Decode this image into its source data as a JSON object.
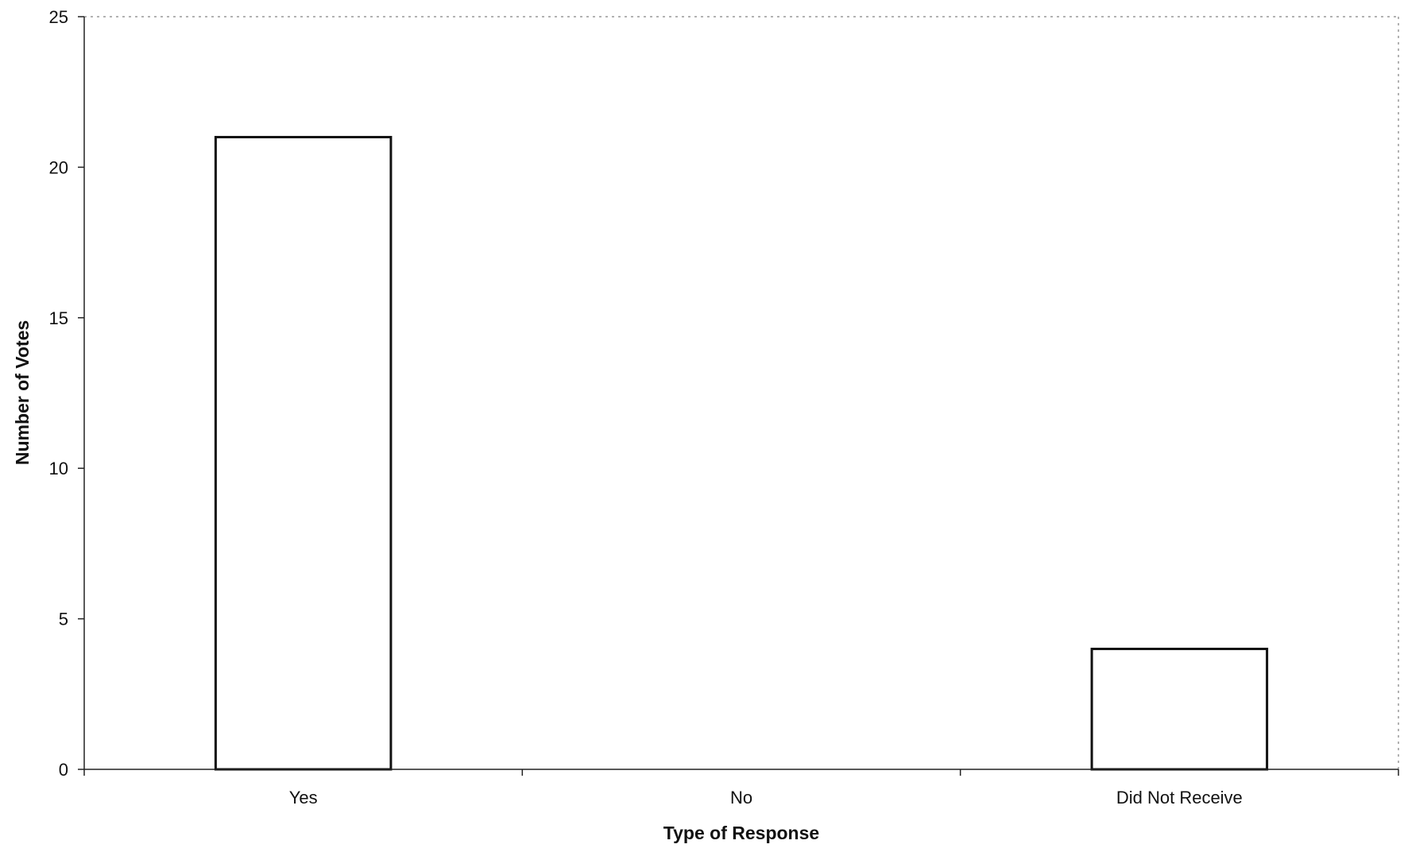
{
  "chart_data": {
    "type": "bar",
    "categories": [
      "Yes",
      "No",
      "Did Not Receive"
    ],
    "values": [
      21,
      0,
      4
    ],
    "xlabel": "Type of Response",
    "ylabel": "Number of Votes",
    "ylim": [
      0,
      25
    ],
    "yticks": [
      0,
      5,
      10,
      15,
      20,
      25
    ],
    "grid": false,
    "legend": "none",
    "bar_fill": "#ffffff",
    "bar_stroke": "#111111"
  }
}
